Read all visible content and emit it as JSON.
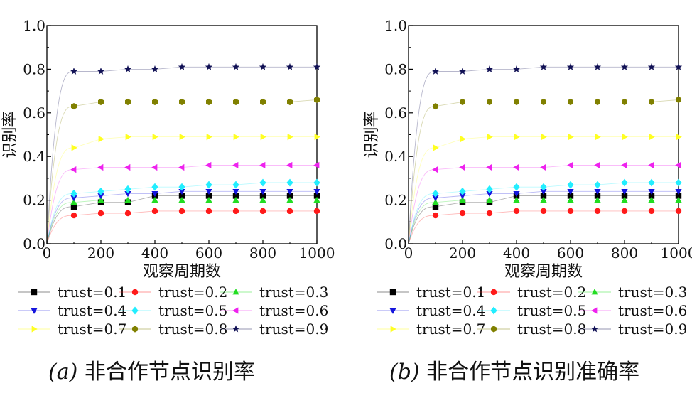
{
  "chart_data": [
    {
      "type": "scatter",
      "caption_prefix": "(a)",
      "caption_text": "非合作节点识别率",
      "xlabel": "观察周期数",
      "ylabel": "识别率",
      "xlim": [
        0,
        1000
      ],
      "ylim": [
        0.0,
        1.0
      ],
      "xticks": [
        0,
        200,
        400,
        600,
        800,
        1000
      ],
      "yticks": [
        0.0,
        0.2,
        0.4,
        0.6,
        0.8,
        1.0
      ],
      "ytick_labels": [
        "0.0",
        "0.2",
        "0.4",
        "0.6",
        "0.8",
        "1.0"
      ],
      "grid": false,
      "legend_position": "below",
      "x": [
        100,
        200,
        300,
        400,
        500,
        600,
        700,
        800,
        900,
        1000
      ],
      "series": [
        {
          "name": "trust=0.1",
          "color": "#000000",
          "marker": "square",
          "values": [
            0.17,
            0.19,
            0.19,
            0.22,
            0.22,
            0.22,
            0.22,
            0.22,
            0.22,
            0.22
          ]
        },
        {
          "name": "trust=0.2",
          "color": "#ff1a1a",
          "marker": "circle",
          "values": [
            0.13,
            0.14,
            0.14,
            0.15,
            0.15,
            0.15,
            0.15,
            0.15,
            0.15,
            0.15
          ]
        },
        {
          "name": "trust=0.3",
          "color": "#22dd22",
          "marker": "triangle-up",
          "values": [
            0.19,
            0.2,
            0.2,
            0.2,
            0.2,
            0.2,
            0.2,
            0.2,
            0.2,
            0.2
          ]
        },
        {
          "name": "trust=0.4",
          "color": "#1515dd",
          "marker": "triangle-down",
          "values": [
            0.21,
            0.22,
            0.23,
            0.23,
            0.24,
            0.24,
            0.24,
            0.24,
            0.24,
            0.24
          ]
        },
        {
          "name": "trust=0.5",
          "color": "#22eeff",
          "marker": "diamond",
          "values": [
            0.23,
            0.24,
            0.25,
            0.26,
            0.26,
            0.27,
            0.27,
            0.28,
            0.28,
            0.28
          ]
        },
        {
          "name": "trust=0.6",
          "color": "#ee22ee",
          "marker": "triangle-left",
          "values": [
            0.34,
            0.35,
            0.35,
            0.35,
            0.35,
            0.36,
            0.36,
            0.36,
            0.36,
            0.36
          ]
        },
        {
          "name": "trust=0.7",
          "color": "#ffff22",
          "marker": "triangle-right",
          "values": [
            0.44,
            0.48,
            0.49,
            0.49,
            0.49,
            0.49,
            0.49,
            0.49,
            0.49,
            0.49
          ]
        },
        {
          "name": "trust=0.8",
          "color": "#808000",
          "marker": "hexagon",
          "values": [
            0.63,
            0.65,
            0.65,
            0.65,
            0.65,
            0.65,
            0.65,
            0.65,
            0.65,
            0.66
          ]
        },
        {
          "name": "trust=0.9",
          "color": "#111155",
          "marker": "star",
          "values": [
            0.79,
            0.79,
            0.8,
            0.8,
            0.81,
            0.81,
            0.81,
            0.81,
            0.81,
            0.81
          ]
        }
      ]
    },
    {
      "type": "scatter",
      "caption_prefix": "(b)",
      "caption_text": "非合作节点识别准确率",
      "xlabel": "观察周期数",
      "ylabel": "识别率",
      "xlim": [
        0,
        1000
      ],
      "ylim": [
        0.0,
        1.0
      ],
      "xticks": [
        0,
        200,
        400,
        600,
        800,
        1000
      ],
      "yticks": [
        0.0,
        0.2,
        0.4,
        0.6,
        0.8,
        1.0
      ],
      "ytick_labels": [
        "0.0",
        "0.2",
        "0.4",
        "0.6",
        "0.8",
        "1.0"
      ],
      "grid": false,
      "legend_position": "below",
      "x": [
        100,
        200,
        300,
        400,
        500,
        600,
        700,
        800,
        900,
        1000
      ],
      "series": [
        {
          "name": "trust=0.1",
          "color": "#000000",
          "marker": "square",
          "values": [
            0.17,
            0.19,
            0.19,
            0.22,
            0.22,
            0.22,
            0.22,
            0.22,
            0.22,
            0.22
          ]
        },
        {
          "name": "trust=0.2",
          "color": "#ff1a1a",
          "marker": "circle",
          "values": [
            0.13,
            0.14,
            0.14,
            0.15,
            0.15,
            0.15,
            0.15,
            0.15,
            0.15,
            0.15
          ]
        },
        {
          "name": "trust=0.3",
          "color": "#22dd22",
          "marker": "triangle-up",
          "values": [
            0.19,
            0.2,
            0.2,
            0.2,
            0.2,
            0.2,
            0.2,
            0.2,
            0.2,
            0.2
          ]
        },
        {
          "name": "trust=0.4",
          "color": "#1515dd",
          "marker": "triangle-down",
          "values": [
            0.21,
            0.22,
            0.23,
            0.23,
            0.24,
            0.24,
            0.24,
            0.24,
            0.24,
            0.24
          ]
        },
        {
          "name": "trust=0.5",
          "color": "#22eeff",
          "marker": "diamond",
          "values": [
            0.23,
            0.24,
            0.25,
            0.26,
            0.26,
            0.27,
            0.27,
            0.28,
            0.28,
            0.28
          ]
        },
        {
          "name": "trust=0.6",
          "color": "#ee22ee",
          "marker": "triangle-left",
          "values": [
            0.34,
            0.35,
            0.35,
            0.35,
            0.35,
            0.36,
            0.36,
            0.36,
            0.36,
            0.36
          ]
        },
        {
          "name": "trust=0.7",
          "color": "#ffff22",
          "marker": "triangle-right",
          "values": [
            0.44,
            0.48,
            0.49,
            0.49,
            0.49,
            0.49,
            0.49,
            0.49,
            0.49,
            0.49
          ]
        },
        {
          "name": "trust=0.8",
          "color": "#808000",
          "marker": "hexagon",
          "values": [
            0.63,
            0.65,
            0.65,
            0.65,
            0.65,
            0.65,
            0.65,
            0.65,
            0.65,
            0.66
          ]
        },
        {
          "name": "trust=0.9",
          "color": "#111155",
          "marker": "star",
          "values": [
            0.79,
            0.79,
            0.8,
            0.8,
            0.81,
            0.81,
            0.81,
            0.81,
            0.81,
            0.81
          ]
        }
      ]
    }
  ]
}
